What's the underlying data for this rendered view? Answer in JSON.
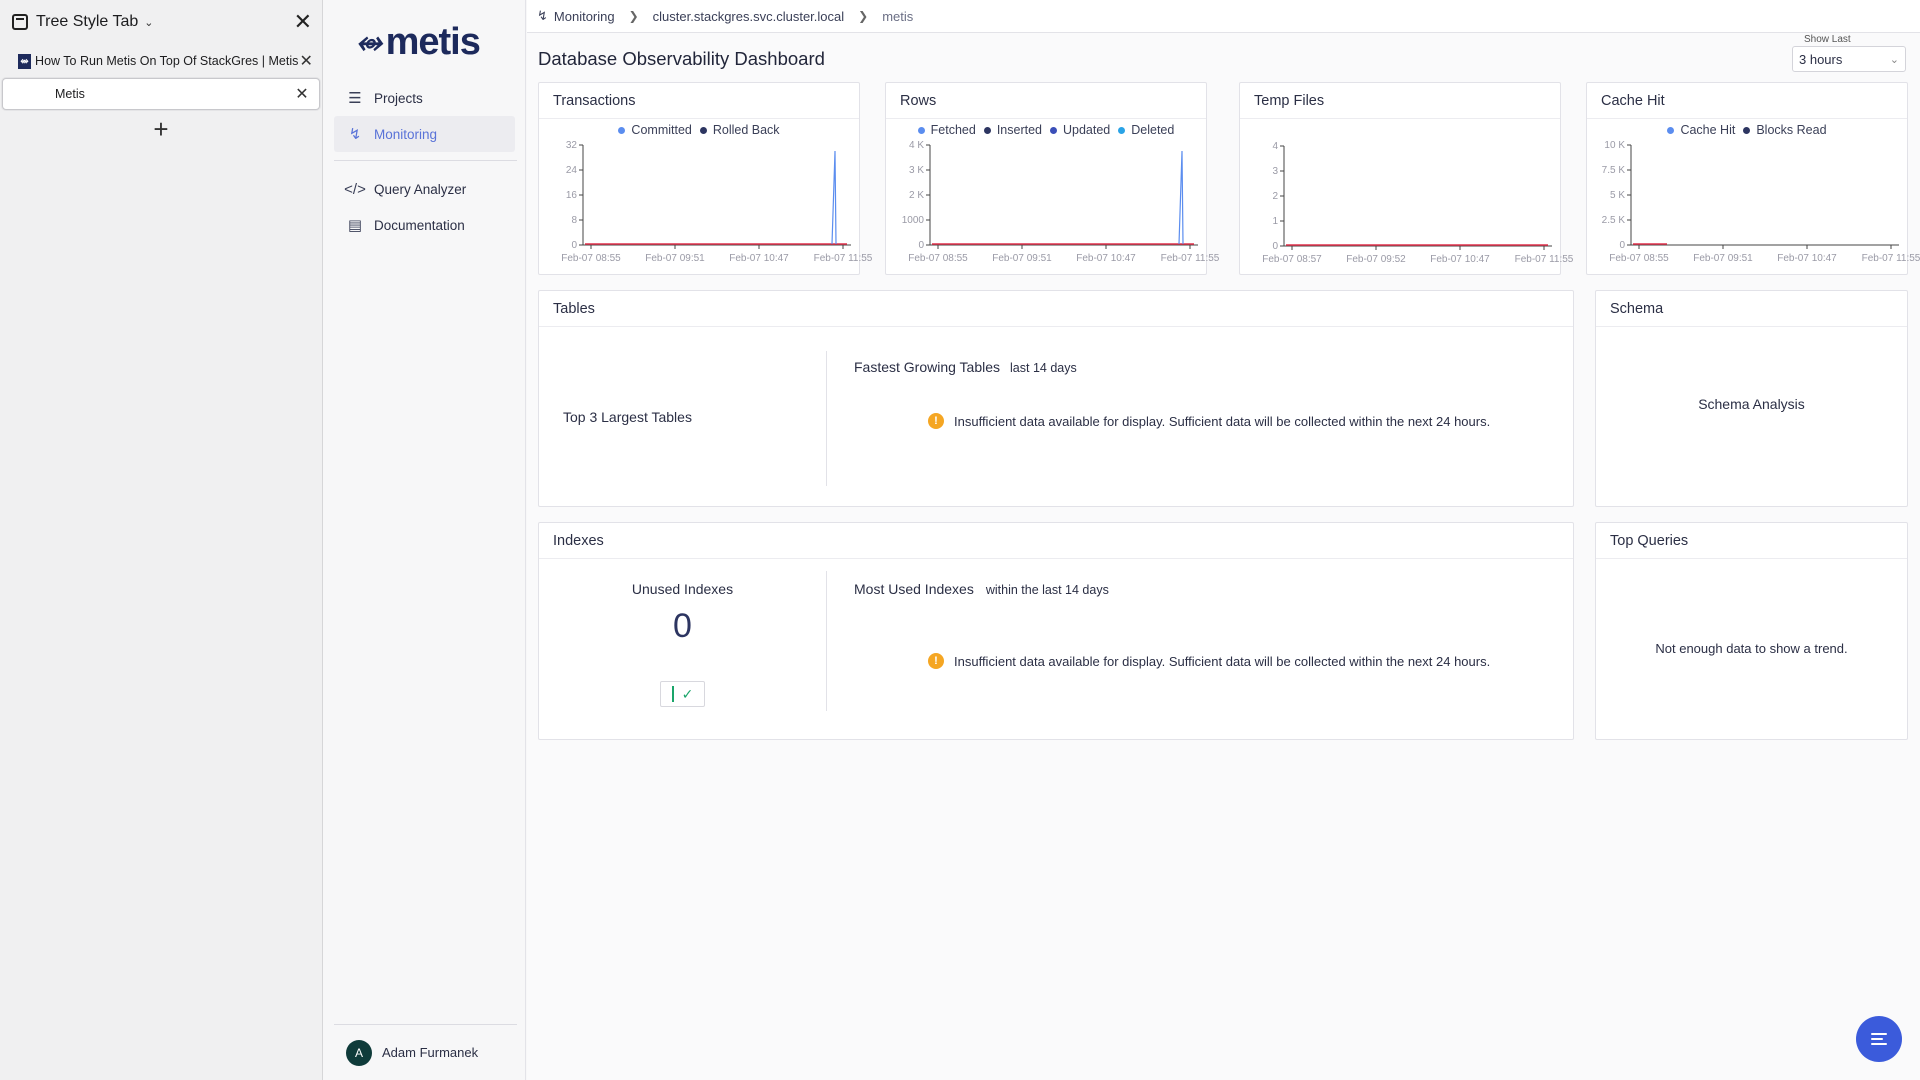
{
  "sidebar_tst": {
    "title": "Tree Style Tab",
    "tabs": [
      {
        "label": "How To Run Metis On Top Of StackGres | Metis"
      },
      {
        "label": "Metis"
      }
    ],
    "new_tab": "+"
  },
  "nav": {
    "logo_text": "metis",
    "items": [
      {
        "label": "Projects",
        "icon": "layers-icon"
      },
      {
        "label": "Monitoring",
        "icon": "activity-icon"
      },
      {
        "label": "Query Analyzer",
        "icon": "code-icon"
      },
      {
        "label": "Documentation",
        "icon": "book-icon"
      }
    ],
    "user": {
      "initial": "A",
      "name": "Adam Furmanek"
    }
  },
  "breadcrumb": [
    "Monitoring",
    "cluster.stackgres.svc.cluster.local",
    "metis"
  ],
  "page_title": "Database Observability Dashboard",
  "show_last": {
    "label": "Show Last",
    "value": "3 hours"
  },
  "chart_data": [
    {
      "type": "line",
      "title": "Transactions",
      "series": [
        {
          "name": "Committed",
          "color": "#5b8def"
        },
        {
          "name": "Rolled Back",
          "color": "#2d3561"
        }
      ],
      "y_ticks": [
        "32",
        "24",
        "16",
        "8",
        "0"
      ],
      "x_ticks": [
        "Feb-07 08:55",
        "Feb-07 09:51",
        "Feb-07 10:47",
        "Feb-07 11:55"
      ],
      "ylim": [
        0,
        32
      ]
    },
    {
      "type": "line",
      "title": "Rows",
      "series": [
        {
          "name": "Fetched",
          "color": "#5b8def"
        },
        {
          "name": "Inserted",
          "color": "#2d3561"
        },
        {
          "name": "Updated",
          "color": "#3b4fb8"
        },
        {
          "name": "Deleted",
          "color": "#2aa3e6"
        }
      ],
      "y_ticks": [
        "4 K",
        "3 K",
        "2 K",
        "1000",
        "0"
      ],
      "x_ticks": [
        "Feb-07 08:55",
        "Feb-07 09:51",
        "Feb-07 10:47",
        "Feb-07 11:55"
      ],
      "ylim": [
        0,
        4000
      ]
    },
    {
      "type": "line",
      "title": "Temp Files",
      "series": [],
      "y_ticks": [
        "4",
        "3",
        "2",
        "1",
        "0"
      ],
      "x_ticks": [
        "Feb-07 08:57",
        "Feb-07 09:52",
        "Feb-07 10:47",
        "Feb-07 11:55"
      ],
      "ylim": [
        0,
        4
      ]
    },
    {
      "type": "line",
      "title": "Cache Hit",
      "series": [
        {
          "name": "Cache Hit",
          "color": "#5b8def"
        },
        {
          "name": "Blocks Read",
          "color": "#2d3561"
        }
      ],
      "y_ticks": [
        "10 K",
        "7.5 K",
        "5 K",
        "2.5 K",
        "0"
      ],
      "x_ticks": [
        "Feb-07 08:55",
        "Feb-07 09:51",
        "Feb-07 10:47",
        "Feb-07 11:55"
      ],
      "ylim": [
        0,
        10000
      ]
    }
  ],
  "tables_card": {
    "title": "Tables",
    "largest": "Top 3 Largest Tables",
    "fastest": "Fastest Growing Tables",
    "fastest_sub": "last 14 days",
    "warning": "Insufficient data available for display. Sufficient data will be collected within the next 24 hours."
  },
  "schema_card": {
    "title": "Schema",
    "body": "Schema Analysis"
  },
  "indexes_card": {
    "title": "Indexes",
    "unused_label": "Unused Indexes",
    "unused_value": "0",
    "most_used": "Most Used Indexes",
    "most_used_sub": "within the last 14 days",
    "warning": "Insufficient data available for display. Sufficient data will be collected within the next 24 hours."
  },
  "top_queries_card": {
    "title": "Top Queries",
    "body": "Not enough data to show a trend."
  },
  "colors": {
    "accent": "#5a73d8",
    "rolled_back_line": "#e0314b",
    "warning": "#f5a623",
    "chat": "#3b5bdb"
  }
}
